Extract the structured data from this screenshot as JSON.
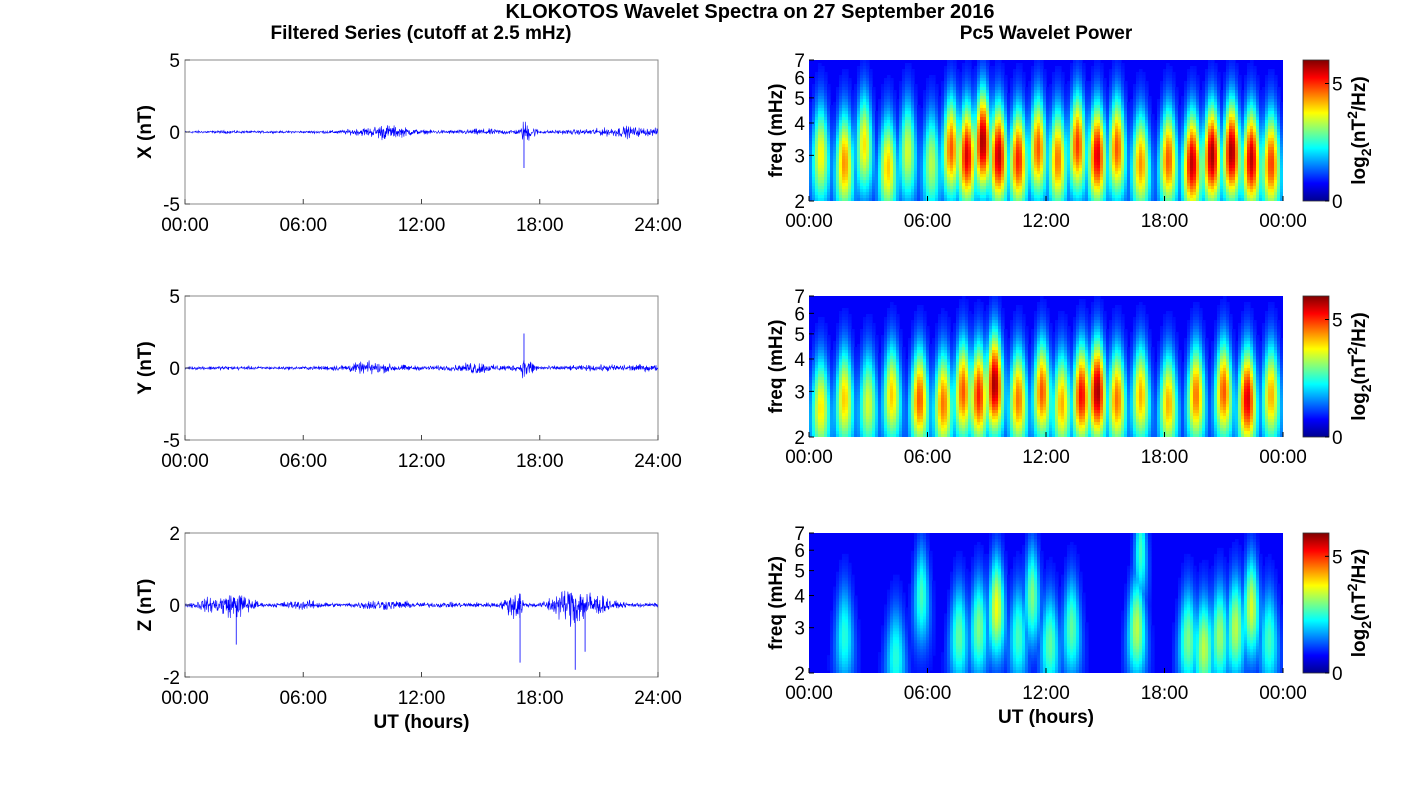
{
  "figure": {
    "title": "KLOKOTOS Wavelet Spectra on 27 September 2016",
    "left_title": "Filtered Series (cutoff at 2.5 mHz)",
    "right_title": "Pc5 Wavelet Power",
    "series_color": "#0000ff",
    "colormap": "jet"
  },
  "chart_data": [
    {
      "type": "line",
      "panel": "filtered-x",
      "ylabel": "X (nT)",
      "ylim": [
        -5,
        5
      ],
      "yticks": [
        "5",
        "0",
        "-5"
      ],
      "xlim": [
        0,
        24
      ],
      "xticks": [
        "00:00",
        "06:00",
        "12:00",
        "18:00",
        "24:00"
      ],
      "xlabel": "",
      "x_units": "hours UT",
      "x": [
        0,
        2,
        4,
        6,
        8,
        9.5,
        10,
        12,
        14,
        15,
        16,
        17,
        17.2,
        18,
        20,
        21,
        22,
        22.5,
        23,
        24
      ],
      "y": [
        0.2,
        0.3,
        0.2,
        0.2,
        0.4,
        1.0,
        1.6,
        0.4,
        0.4,
        0.7,
        0.5,
        0.5,
        -2.5,
        0.3,
        0.5,
        0.7,
        1.0,
        1.2,
        0.9,
        0.7
      ]
    },
    {
      "type": "line",
      "panel": "filtered-y",
      "ylabel": "Y (nT)",
      "ylim": [
        -5,
        5
      ],
      "yticks": [
        "5",
        "0",
        "-5"
      ],
      "xlim": [
        0,
        24
      ],
      "xticks": [
        "00:00",
        "06:00",
        "12:00",
        "18:00",
        "24:00"
      ],
      "xlabel": "",
      "x_units": "hours UT",
      "x": [
        0,
        2,
        4,
        6,
        8,
        9.5,
        10,
        12,
        14,
        14.8,
        15.5,
        17,
        17.2,
        18,
        20,
        22,
        24
      ],
      "y": [
        0.3,
        0.4,
        0.3,
        0.3,
        0.6,
        1.4,
        0.9,
        0.4,
        0.6,
        1.5,
        0.6,
        0.6,
        2.4,
        0.4,
        0.5,
        0.7,
        0.6
      ]
    },
    {
      "type": "line",
      "panel": "filtered-z",
      "ylabel": "Z (nT)",
      "ylim": [
        -2,
        2
      ],
      "yticks": [
        "2",
        "0",
        "-2"
      ],
      "xlim": [
        0,
        24
      ],
      "xticks": [
        "00:00",
        "06:00",
        "12:00",
        "18:00",
        "24:00"
      ],
      "xlabel": "UT (hours)",
      "x_units": "hours UT",
      "x": [
        0,
        1,
        2.6,
        4,
        6,
        8,
        9.7,
        12,
        14,
        16,
        17,
        17.2,
        18,
        19.8,
        20.3,
        22,
        24
      ],
      "y": [
        0.1,
        -0.5,
        -1.1,
        0.1,
        -0.4,
        0.1,
        0.45,
        0.2,
        0.2,
        0.2,
        -1.6,
        0.2,
        0.15,
        -1.8,
        -1.3,
        0.2,
        0.15
      ],
      "spike_note": ""
    },
    {
      "type": "heatmap",
      "panel": "wavelet-x",
      "ylabel": "freq (mHz)",
      "y_scale": "log",
      "ylim": [
        2,
        7
      ],
      "yticks": [
        "2",
        "3",
        "4",
        "5",
        "6",
        "7"
      ],
      "xlim": [
        0,
        24
      ],
      "xticks": [
        "00:00",
        "06:00",
        "12:00",
        "18:00",
        "00:00"
      ],
      "xlabel": "",
      "x_units": "hours UT",
      "colorbar_label": "log2(nT^2/Hz)",
      "colorbar_label_parts": [
        "log",
        "2",
        "(nT",
        "2",
        "/Hz)"
      ],
      "colorbar_ticks": [
        "5",
        "0"
      ],
      "zlim": [
        0,
        6
      ],
      "bursts": [
        {
          "t": 0.6,
          "f": 3.0,
          "power": 3.5
        },
        {
          "t": 1.8,
          "f": 2.8,
          "power": 4.2
        },
        {
          "t": 2.8,
          "f": 3.3,
          "power": 3.6
        },
        {
          "t": 4.0,
          "f": 2.7,
          "power": 3.8
        },
        {
          "t": 5.0,
          "f": 3.1,
          "power": 3.2
        },
        {
          "t": 6.2,
          "f": 2.8,
          "power": 3.0
        },
        {
          "t": 7.2,
          "f": 3.2,
          "power": 4.6
        },
        {
          "t": 8.0,
          "f": 3.0,
          "power": 5.4
        },
        {
          "t": 8.8,
          "f": 3.4,
          "power": 5.8
        },
        {
          "t": 9.6,
          "f": 3.0,
          "power": 5.6
        },
        {
          "t": 10.6,
          "f": 2.9,
          "power": 5.0
        },
        {
          "t": 11.6,
          "f": 3.2,
          "power": 4.6
        },
        {
          "t": 12.6,
          "f": 2.9,
          "power": 4.4
        },
        {
          "t": 13.6,
          "f": 3.3,
          "power": 4.8
        },
        {
          "t": 14.6,
          "f": 3.0,
          "power": 5.4
        },
        {
          "t": 15.6,
          "f": 3.2,
          "power": 4.6
        },
        {
          "t": 16.8,
          "f": 2.8,
          "power": 4.2
        },
        {
          "t": 18.2,
          "f": 2.9,
          "power": 4.6
        },
        {
          "t": 19.4,
          "f": 2.8,
          "power": 5.6
        },
        {
          "t": 20.4,
          "f": 3.0,
          "power": 5.8
        },
        {
          "t": 21.4,
          "f": 3.1,
          "power": 5.8
        },
        {
          "t": 22.4,
          "f": 2.9,
          "power": 5.6
        },
        {
          "t": 23.4,
          "f": 2.8,
          "power": 4.8
        }
      ]
    },
    {
      "type": "heatmap",
      "panel": "wavelet-y",
      "ylabel": "freq (mHz)",
      "y_scale": "log",
      "ylim": [
        2,
        7
      ],
      "yticks": [
        "2",
        "3",
        "4",
        "5",
        "6",
        "7"
      ],
      "xlim": [
        0,
        24
      ],
      "xticks": [
        "00:00",
        "06:00",
        "12:00",
        "18:00",
        "00:00"
      ],
      "xlabel": "",
      "x_units": "hours UT",
      "colorbar_label": "log2(nT^2/Hz)",
      "colorbar_label_parts": [
        "log",
        "2",
        "(nT",
        "2",
        "/Hz)"
      ],
      "colorbar_ticks": [
        "5",
        "0"
      ],
      "zlim": [
        0,
        6
      ],
      "bursts": [
        {
          "t": 0.6,
          "f": 2.6,
          "power": 3.6
        },
        {
          "t": 1.8,
          "f": 2.8,
          "power": 3.8
        },
        {
          "t": 3.0,
          "f": 2.7,
          "power": 3.2
        },
        {
          "t": 4.2,
          "f": 2.9,
          "power": 3.8
        },
        {
          "t": 5.6,
          "f": 2.8,
          "power": 4.6
        },
        {
          "t": 6.8,
          "f": 2.7,
          "power": 4.4
        },
        {
          "t": 7.8,
          "f": 3.0,
          "power": 4.6
        },
        {
          "t": 8.6,
          "f": 2.9,
          "power": 5.0
        },
        {
          "t": 9.4,
          "f": 3.2,
          "power": 5.8
        },
        {
          "t": 10.6,
          "f": 2.8,
          "power": 4.4
        },
        {
          "t": 11.8,
          "f": 3.0,
          "power": 4.6
        },
        {
          "t": 12.8,
          "f": 2.7,
          "power": 4.0
        },
        {
          "t": 13.8,
          "f": 2.9,
          "power": 5.2
        },
        {
          "t": 14.6,
          "f": 3.0,
          "power": 5.8
        },
        {
          "t": 15.6,
          "f": 2.8,
          "power": 4.4
        },
        {
          "t": 16.8,
          "f": 2.9,
          "power": 4.0
        },
        {
          "t": 18.2,
          "f": 2.7,
          "power": 4.0
        },
        {
          "t": 19.6,
          "f": 2.9,
          "power": 4.4
        },
        {
          "t": 21.0,
          "f": 3.0,
          "power": 4.6
        },
        {
          "t": 22.2,
          "f": 2.8,
          "power": 5.4
        },
        {
          "t": 23.4,
          "f": 2.9,
          "power": 4.0
        }
      ]
    },
    {
      "type": "heatmap",
      "panel": "wavelet-z",
      "ylabel": "freq (mHz)",
      "y_scale": "log",
      "ylim": [
        2,
        7
      ],
      "yticks": [
        "2",
        "3",
        "4",
        "5",
        "6",
        "7"
      ],
      "xlim": [
        0,
        24
      ],
      "xticks": [
        "00:00",
        "06:00",
        "12:00",
        "18:00",
        "00:00"
      ],
      "xlabel": "UT (hours)",
      "x_units": "hours UT",
      "colorbar_label": "log2(nT^2/Hz)",
      "colorbar_label_parts": [
        "log",
        "2",
        "(nT",
        "2",
        "/Hz)"
      ],
      "colorbar_ticks": [
        "5",
        "0"
      ],
      "zlim": [
        0,
        6
      ],
      "bursts": [
        {
          "t": 1.8,
          "f": 2.8,
          "power": 2.0
        },
        {
          "t": 4.4,
          "f": 2.3,
          "power": 2.0
        },
        {
          "t": 5.7,
          "f": 4.0,
          "power": 2.2
        },
        {
          "t": 7.6,
          "f": 2.8,
          "power": 2.4
        },
        {
          "t": 8.6,
          "f": 3.0,
          "power": 2.6
        },
        {
          "t": 9.5,
          "f": 3.6,
          "power": 3.4
        },
        {
          "t": 10.6,
          "f": 2.8,
          "power": 2.2
        },
        {
          "t": 11.3,
          "f": 4.0,
          "power": 2.6
        },
        {
          "t": 12.2,
          "f": 2.6,
          "power": 2.4
        },
        {
          "t": 13.3,
          "f": 3.0,
          "power": 2.4
        },
        {
          "t": 16.6,
          "f": 3.0,
          "power": 3.0
        },
        {
          "t": 16.8,
          "f": 6.0,
          "power": 2.2
        },
        {
          "t": 19.2,
          "f": 2.7,
          "power": 2.6
        },
        {
          "t": 20.0,
          "f": 2.5,
          "power": 3.0
        },
        {
          "t": 20.8,
          "f": 2.8,
          "power": 2.8
        },
        {
          "t": 21.6,
          "f": 3.0,
          "power": 3.0
        },
        {
          "t": 22.4,
          "f": 3.6,
          "power": 3.2
        },
        {
          "t": 23.3,
          "f": 2.7,
          "power": 2.2
        }
      ]
    }
  ]
}
